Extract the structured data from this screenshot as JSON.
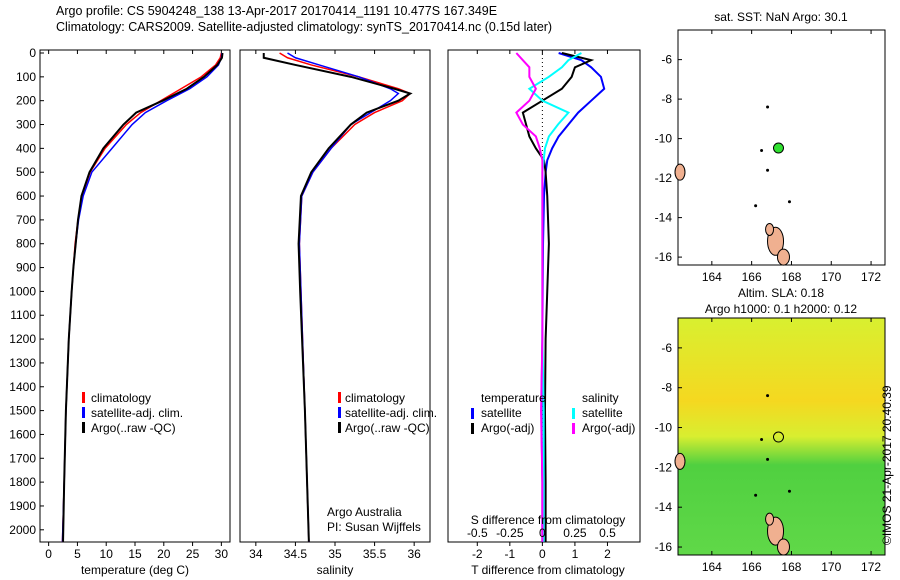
{
  "title_line1": "Argo profile: CS 5904248_138 13-Apr-2017 20170414_1191 10.477S 167.349E",
  "title_line2": "Climatology: CARS2009. Satellite-adjusted climatology: synTS_20170414.nc (0.15d later)",
  "colors": {
    "climatology": "#ff0000",
    "satellite": "#0000ff",
    "argo": "#000000",
    "sal_satellite": "#00ffff",
    "sal_argo": "#ff00ff"
  },
  "chart_data": [
    {
      "type": "line",
      "name": "temperature",
      "xlabel": "temperature (deg C)",
      "ylabel": "",
      "xlim": [
        -1.5,
        31.5
      ],
      "ylim": [
        2050,
        0
      ],
      "xticks": [
        0,
        5,
        10,
        15,
        20,
        25,
        30
      ],
      "yticks": [
        0,
        100,
        200,
        300,
        400,
        500,
        600,
        700,
        800,
        900,
        1000,
        1100,
        1200,
        1300,
        1400,
        1500,
        1600,
        1700,
        1800,
        1900,
        2000
      ],
      "depth": [
        0,
        20,
        50,
        100,
        150,
        200,
        250,
        300,
        400,
        500,
        600,
        700,
        800,
        900,
        1000,
        1200,
        1500,
        1800,
        2050
      ],
      "series": [
        {
          "name": "climatology",
          "values": [
            30,
            29.8,
            29,
            26.5,
            23,
            19.5,
            16,
            13.5,
            9.8,
            7.2,
            5.8,
            5.1,
            4.6,
            4.3,
            4.0,
            3.5,
            3.0,
            2.7,
            2.4
          ]
        },
        {
          "name": "satellite-adj. clim.",
          "values": [
            30.1,
            30,
            29.5,
            27.5,
            24.5,
            20.5,
            16.8,
            14.5,
            11,
            7.5,
            6,
            5.2,
            4.7,
            4.3,
            4.0,
            3.5,
            3.0,
            2.7,
            2.4
          ]
        },
        {
          "name": "Argo(..raw -QC)",
          "values": [
            30.2,
            30.1,
            29.3,
            27,
            24,
            19.8,
            15.2,
            13,
            9.5,
            7.1,
            5.7,
            5.1,
            4.7,
            4.3,
            4.0,
            3.5,
            3.0,
            2.7,
            2.5
          ]
        }
      ],
      "legend": [
        "climatology",
        "satellite-adj. clim.",
        "Argo(..raw -QC)"
      ],
      "legend_position": "lower-center"
    },
    {
      "type": "line",
      "name": "salinity",
      "xlabel": "salinity",
      "xlim": [
        33.8,
        36.2
      ],
      "ylim": [
        2050,
        0
      ],
      "xticks": [
        34,
        34.5,
        35,
        35.5,
        36
      ],
      "depth": [
        0,
        20,
        50,
        100,
        150,
        170,
        200,
        250,
        300,
        400,
        500,
        600,
        800,
        1000,
        1500,
        2050
      ],
      "series": [
        {
          "name": "climatology",
          "values": [
            34.3,
            34.4,
            34.7,
            35.3,
            35.8,
            35.95,
            35.85,
            35.5,
            35.25,
            34.95,
            34.72,
            34.58,
            34.55,
            34.57,
            34.62,
            34.67
          ]
        },
        {
          "name": "satellite-adj. clim.",
          "values": [
            34.4,
            34.5,
            34.8,
            35.3,
            35.7,
            35.8,
            35.7,
            35.45,
            35.2,
            34.95,
            34.72,
            34.58,
            34.55,
            34.57,
            34.62,
            34.67
          ]
        },
        {
          "name": "Argo(..raw -QC)",
          "values": [
            34.1,
            34.1,
            34.5,
            35.2,
            35.75,
            35.95,
            35.8,
            35.4,
            35.2,
            34.92,
            34.7,
            34.57,
            34.54,
            34.56,
            34.62,
            34.67
          ]
        }
      ],
      "legend": [
        "climatology",
        "satellite-adj. clim.",
        "Argo(..raw -QC)"
      ],
      "annotation1": "Argo Australia",
      "annotation2": "PI: Susan Wijffels"
    },
    {
      "type": "line",
      "name": "differences",
      "xlabel": "T difference from climatology",
      "x2label": "S difference from climatology",
      "xlim": [
        -2.9,
        3.0
      ],
      "x2lim": [
        -0.725,
        0.75
      ],
      "xticks": [
        -2,
        -1,
        0,
        1,
        2
      ],
      "x2ticks": [
        "-0.5",
        "-0.25",
        "0",
        "0.25",
        "0.5"
      ],
      "x2tickvals": [
        -0.5,
        -0.25,
        0,
        0.25,
        0.5
      ],
      "depth": [
        0,
        30,
        60,
        100,
        150,
        200,
        250,
        300,
        350,
        400,
        450,
        500,
        600,
        800,
        1000,
        1200,
        1500,
        1800,
        2050
      ],
      "series": [
        {
          "name": "temperature satellite",
          "axis": "T",
          "values": [
            0.5,
            1.2,
            1.5,
            1.8,
            1.9,
            1.5,
            1.1,
            0.8,
            0.5,
            0.3,
            0.15,
            0.1,
            0.05,
            0.02,
            0.01,
            0,
            -0.03,
            0,
            0
          ]
        },
        {
          "name": "temperature Argo(-adj)",
          "axis": "T",
          "values": [
            0.6,
            1.5,
            1.0,
            0.9,
            0.6,
            0.0,
            -0.6,
            -0.5,
            -0.4,
            -0.2,
            0.05,
            0.1,
            0.15,
            0.2,
            0.15,
            0.1,
            0.08,
            0.1,
            0.1
          ]
        },
        {
          "name": "salinity satellite",
          "axis": "S",
          "values": [
            0.3,
            0.2,
            0.15,
            0.05,
            -0.1,
            0,
            0.2,
            0.12,
            0.05,
            0.02,
            0.01,
            0.0,
            0.0,
            0.0,
            0.0,
            0.0,
            0.01,
            0.01,
            0.01
          ]
        },
        {
          "name": "salinity Argo(-adj)",
          "axis": "S",
          "values": [
            -0.2,
            -0.15,
            -0.1,
            -0.1,
            -0.05,
            -0.1,
            -0.2,
            -0.15,
            -0.05,
            -0.02,
            0,
            0,
            0,
            0,
            0,
            0,
            -0.01,
            0,
            0
          ]
        }
      ],
      "legend_headers": [
        "temperature",
        "salinity"
      ],
      "legend": [
        "satellite",
        "Argo(-adj)",
        "satellite",
        "Argo(-adj)"
      ]
    },
    {
      "type": "heatmap",
      "name": "sst-map",
      "title": "sat. SST: NaN Argo: 30.1",
      "xlim": [
        162.3,
        172.7
      ],
      "ylim": [
        -16.4,
        -4.5
      ],
      "xticks": [
        164,
        166,
        168,
        170,
        172
      ],
      "yticks": [
        -6,
        -8,
        -10,
        -12,
        -14,
        -16
      ],
      "argo_position": [
        167.349,
        -10.477
      ]
    },
    {
      "type": "heatmap",
      "name": "sla-map",
      "title1": "Altim. SLA: 0.18",
      "title2": "Argo h1000: 0.1 h2000: 0.12",
      "xlim": [
        162.3,
        172.7
      ],
      "ylim": [
        -16.4,
        -4.5
      ],
      "xticks": [
        164,
        166,
        168,
        170,
        172
      ],
      "yticks": [
        -6,
        -8,
        -10,
        -12,
        -14,
        -16
      ],
      "argo_position": [
        167.349,
        -10.477
      ]
    }
  ],
  "credit": "©IMOS 21-Apr-2017 20:40:39"
}
